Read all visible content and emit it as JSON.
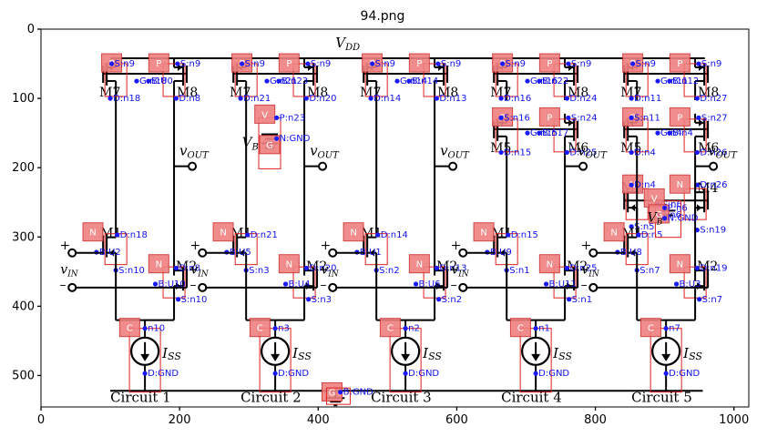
{
  "title": "94.png",
  "x_ticks": [
    "0",
    "200",
    "400",
    "600",
    "800",
    "1000"
  ],
  "y_ticks": [
    "0",
    "100",
    "200",
    "300",
    "400",
    "500"
  ],
  "vdd": "V",
  "vdd_sub": "DD",
  "vout": "v",
  "vout_sub": "OUT",
  "vin": "v",
  "vin_sub": "IN",
  "vb": "V",
  "vb_sub": "B",
  "iss": "I",
  "iss_sub": "SS",
  "plus": "+",
  "minus": "–",
  "circuits": [
    {
      "caption": "Circuit 1",
      "pmos": [
        "M7",
        "M8"
      ],
      "nmos": [
        "M1",
        "M2"
      ],
      "has_source": false,
      "has_bias": false,
      "ann": {
        "p1_s": "S:n9",
        "p1_d": "D:n18",
        "p2_s": "S:n9",
        "p2_d": "D:n8",
        "p_gate": "G:n18",
        "p_body": "B:U0",
        "n1_d": "D:n18",
        "n1_s": "S:n10",
        "n1_g": "B:U2",
        "n2_d": "D:n8",
        "n2_s": "S:n10",
        "n2_g": "B:U10",
        "c_top": "n10",
        "c_bot": "D:GND"
      }
    },
    {
      "caption": "Circuit 2",
      "pmos": [
        "M7",
        "M8"
      ],
      "nmos": [
        "M1",
        "M2"
      ],
      "has_source": true,
      "has_bias": false,
      "ann": {
        "p1_s": "S:n9",
        "p1_d": "D:n21",
        "p2_s": "S:n9",
        "p2_d": "D:n20",
        "p_gate": "G:n21",
        "p_body": "B:n23",
        "n1_d": "D:n21",
        "n1_s": "S:n3",
        "n1_g": "B:U5",
        "n2_d": "D:n20",
        "n2_s": "S:n3",
        "n2_g": "B:U4",
        "c_top": "n3",
        "c_bot": "D:GND",
        "v_top": "P:n23",
        "v_bot": "N:GND"
      }
    },
    {
      "caption": "Circuit 3",
      "pmos": [
        "M7",
        "M8"
      ],
      "nmos": [
        "M1",
        "M2"
      ],
      "has_source": false,
      "has_bias": false,
      "ann": {
        "p1_s": "S:n9",
        "p1_d": "D:n14",
        "p2_s": "S:n9",
        "p2_d": "D:n13",
        "p_gate": "G:n14",
        "p_body": "B:n14",
        "n1_d": "D:n14",
        "n1_s": "S:n2",
        "n1_g": "B:U1",
        "n2_d": "D:n13",
        "n2_s": "S:n2",
        "n2_g": "B:U6",
        "c_top": "n2",
        "c_bot": "D:GND"
      }
    },
    {
      "caption": "Circuit 4",
      "pmos": [
        "M7",
        "M8"
      ],
      "pmos2": [
        "M5",
        "M6"
      ],
      "nmos": [
        "M1",
        "M2"
      ],
      "has_source": false,
      "has_bias": false,
      "ann": {
        "p1_s": "S:n9",
        "p1_d": "D:n16",
        "p2_s": "S:n9",
        "p2_d": "D:n24",
        "p_gate": "G:n16",
        "p_body": "B:n22",
        "p3_s": "S:n16",
        "p3_d": "D:n15",
        "p4_s": "S:n24",
        "p4_d": "D:n25",
        "p2_gate": "G:n15",
        "p2_body": "B:n17",
        "n1_d": "D:n15",
        "n1_s": "S:n1",
        "n1_g": "B:U9",
        "n2_d": "D:n25",
        "n2_s": "S:n1",
        "n2_g": "B:U11",
        "c_top": "n1",
        "c_bot": "D:GND"
      }
    },
    {
      "caption": "Circuit 5",
      "pmos": [
        "M7",
        "M8"
      ],
      "pmos2": [
        "M5",
        "M6"
      ],
      "nmos": [
        "M1",
        "M2"
      ],
      "nmos2": [
        "M3",
        "M4"
      ],
      "has_source": false,
      "has_bias": true,
      "ann": {
        "p1_s": "S:n9",
        "p1_d": "D:n11",
        "p2_s": "S:n9",
        "p2_d": "D:n27",
        "p_gate": "G:n11",
        "p_body": "B:n12",
        "p3_s": "S:n11",
        "p3_d": "D:n4",
        "p4_s": "S:n27",
        "p4_d": "D:n26",
        "p2_gate": "G:n4",
        "p2_body": "B:n4",
        "n3_d": "D:n4",
        "n3_s": "S:n5",
        "n4_d": "D:n26",
        "n4_s": "S:n19",
        "n3_g": "G:n6",
        "n3_b": "B:n6",
        "n1_d": "D:n5",
        "n1_s": "S:n7",
        "n1_g": "B:U8",
        "n2_d": "D:n19",
        "n2_s": "S:n7",
        "n2_g": "B:U3",
        "c_top": "n7",
        "c_bot": "D:GND",
        "v_top": "P:n6",
        "v_bot": "N:GND"
      }
    }
  ],
  "ground": {
    "label": "G",
    "ann": "B:GND"
  },
  "badges": {
    "pmos": "P",
    "nmos": "N",
    "isrc": "C",
    "vsrc": "V",
    "gnd": "G"
  }
}
